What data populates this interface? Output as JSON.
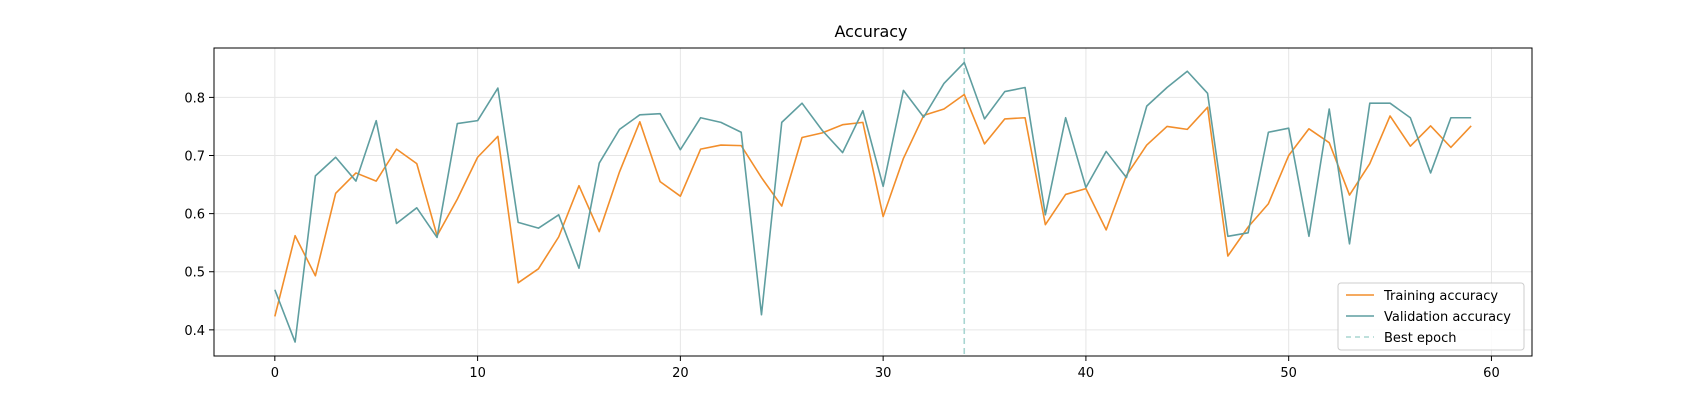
{
  "chart_data": {
    "type": "line",
    "title": "Accuracy",
    "xlabel": "",
    "ylabel": "",
    "xlim": [
      -3,
      62
    ],
    "ylim": [
      0.355,
      0.885
    ],
    "xticks": [
      0,
      10,
      20,
      30,
      40,
      50,
      60
    ],
    "yticks": [
      0.4,
      0.5,
      0.6,
      0.7,
      0.8
    ],
    "grid": true,
    "legend_position": "lower-right",
    "best_epoch": 34,
    "series": [
      {
        "name": "Training accuracy",
        "color": "#f28e2b",
        "x": [
          0,
          1,
          2,
          3,
          4,
          5,
          6,
          7,
          8,
          9,
          10,
          11,
          12,
          13,
          14,
          15,
          16,
          17,
          18,
          19,
          20,
          21,
          22,
          23,
          24,
          25,
          26,
          27,
          28,
          29,
          30,
          31,
          32,
          33,
          34,
          35,
          36,
          37,
          38,
          39,
          40,
          41,
          42,
          43,
          44,
          45,
          46,
          47,
          48,
          49,
          50,
          51,
          52,
          53,
          54,
          55,
          56,
          57,
          58,
          59
        ],
        "values": [
          0.423,
          0.562,
          0.493,
          0.635,
          0.67,
          0.656,
          0.711,
          0.686,
          0.562,
          0.625,
          0.697,
          0.733,
          0.481,
          0.505,
          0.56,
          0.648,
          0.569,
          0.672,
          0.758,
          0.655,
          0.63,
          0.711,
          0.718,
          0.717,
          0.662,
          0.613,
          0.731,
          0.739,
          0.753,
          0.757,
          0.595,
          0.695,
          0.769,
          0.78,
          0.805,
          0.72,
          0.763,
          0.765,
          0.581,
          0.633,
          0.643,
          0.572,
          0.666,
          0.718,
          0.75,
          0.745,
          0.783,
          0.527,
          0.577,
          0.617,
          0.7,
          0.746,
          0.722,
          0.632,
          0.686,
          0.768,
          0.716,
          0.751,
          0.714,
          0.751
        ]
      },
      {
        "name": "Validation accuracy",
        "color": "#5f9ea0",
        "x": [
          0,
          1,
          2,
          3,
          4,
          5,
          6,
          7,
          8,
          9,
          10,
          11,
          12,
          13,
          14,
          15,
          16,
          17,
          18,
          19,
          20,
          21,
          22,
          23,
          24,
          25,
          26,
          27,
          28,
          29,
          30,
          31,
          32,
          33,
          34,
          35,
          36,
          37,
          38,
          39,
          40,
          41,
          42,
          43,
          44,
          45,
          46,
          47,
          48,
          49,
          50,
          51,
          52,
          53,
          54,
          55,
          56,
          57,
          58,
          59
        ],
        "values": [
          0.469,
          0.379,
          0.665,
          0.697,
          0.656,
          0.76,
          0.583,
          0.61,
          0.559,
          0.755,
          0.76,
          0.816,
          0.585,
          0.575,
          0.598,
          0.506,
          0.687,
          0.745,
          0.77,
          0.772,
          0.71,
          0.765,
          0.757,
          0.74,
          0.426,
          0.757,
          0.79,
          0.743,
          0.705,
          0.777,
          0.647,
          0.812,
          0.766,
          0.824,
          0.86,
          0.763,
          0.81,
          0.817,
          0.598,
          0.765,
          0.645,
          0.707,
          0.662,
          0.785,
          0.817,
          0.845,
          0.807,
          0.561,
          0.567,
          0.74,
          0.747,
          0.561,
          0.78,
          0.548,
          0.79,
          0.79,
          0.765,
          0.67,
          0.765,
          0.765
        ]
      }
    ],
    "best_epoch_label": "Best epoch",
    "best_epoch_color": "#a8d5d1"
  }
}
